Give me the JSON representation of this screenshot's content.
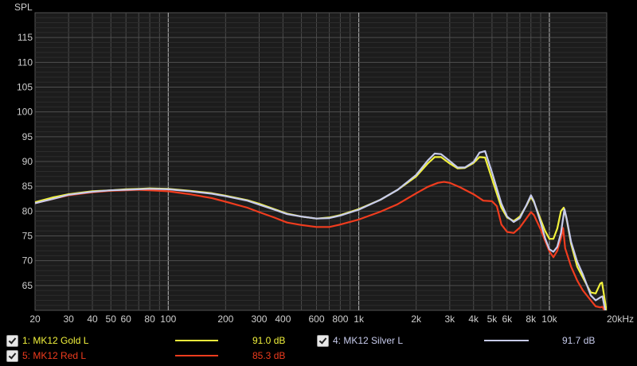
{
  "chart_data": {
    "type": "line",
    "ylabel": "SPL",
    "xunit_label": "20kHz",
    "x_scale": "log",
    "xlim": [
      20,
      20000
    ],
    "ylim": [
      60,
      120
    ],
    "grid": true,
    "y_ticks": [
      65,
      70,
      75,
      80,
      85,
      90,
      95,
      100,
      105,
      110,
      115
    ],
    "x_ticks": [
      {
        "v": 20,
        "label": "20"
      },
      {
        "v": 30,
        "label": "30"
      },
      {
        "v": 40,
        "label": "40"
      },
      {
        "v": 50,
        "label": "50"
      },
      {
        "v": 60,
        "label": "60"
      },
      {
        "v": 80,
        "label": "80"
      },
      {
        "v": 100,
        "label": "100"
      },
      {
        "v": 200,
        "label": "200"
      },
      {
        "v": 300,
        "label": "300"
      },
      {
        "v": 400,
        "label": "400"
      },
      {
        "v": 600,
        "label": "600"
      },
      {
        "v": 800,
        "label": "800"
      },
      {
        "v": 1000,
        "label": "1k"
      },
      {
        "v": 2000,
        "label": "2k"
      },
      {
        "v": 3000,
        "label": "3k"
      },
      {
        "v": 4000,
        "label": "4k"
      },
      {
        "v": 5000,
        "label": "5k"
      },
      {
        "v": 6000,
        "label": "6k"
      },
      {
        "v": 8000,
        "label": "8k"
      },
      {
        "v": 10000,
        "label": "10k"
      },
      {
        "v": 20000,
        "label": "20kHz"
      }
    ],
    "series": [
      {
        "name": "1: MK12 Gold L",
        "color": "#f2f23c",
        "value_label": "91.0 dB",
        "points": [
          [
            20,
            81.8
          ],
          [
            25,
            82.8
          ],
          [
            30,
            83.4
          ],
          [
            40,
            84.0
          ],
          [
            50,
            84.2
          ],
          [
            60,
            84.4
          ],
          [
            70,
            84.5
          ],
          [
            80,
            84.6
          ],
          [
            100,
            84.5
          ],
          [
            130,
            84.1
          ],
          [
            170,
            83.6
          ],
          [
            200,
            83.1
          ],
          [
            260,
            82.2
          ],
          [
            300,
            81.5
          ],
          [
            360,
            80.4
          ],
          [
            420,
            79.5
          ],
          [
            500,
            78.9
          ],
          [
            600,
            78.5
          ],
          [
            700,
            78.7
          ],
          [
            800,
            79.2
          ],
          [
            1000,
            80.4
          ],
          [
            1300,
            82.3
          ],
          [
            1600,
            84.3
          ],
          [
            2000,
            87.0
          ],
          [
            2300,
            89.6
          ],
          [
            2500,
            90.9
          ],
          [
            2700,
            90.9
          ],
          [
            3000,
            89.6
          ],
          [
            3300,
            88.6
          ],
          [
            3600,
            88.7
          ],
          [
            4000,
            89.7
          ],
          [
            4300,
            90.9
          ],
          [
            4600,
            90.8
          ],
          [
            5000,
            86.5
          ],
          [
            5600,
            80.7
          ],
          [
            6000,
            78.7
          ],
          [
            6500,
            78.0
          ],
          [
            7000,
            78.9
          ],
          [
            7600,
            81.2
          ],
          [
            8000,
            82.9
          ],
          [
            8300,
            81.8
          ],
          [
            9000,
            78.3
          ],
          [
            9500,
            76.0
          ],
          [
            10000,
            74.4
          ],
          [
            10500,
            74.4
          ],
          [
            11000,
            76.5
          ],
          [
            11500,
            80.0
          ],
          [
            11900,
            80.7
          ],
          [
            12300,
            78.5
          ],
          [
            13000,
            73.4
          ],
          [
            14000,
            68.8
          ],
          [
            15000,
            66.6
          ],
          [
            16500,
            63.6
          ],
          [
            17500,
            63.4
          ],
          [
            18500,
            65.4
          ],
          [
            18900,
            65.6
          ],
          [
            19400,
            62.8
          ],
          [
            20000,
            59.5
          ]
        ]
      },
      {
        "name": "4: MK12 Silver L",
        "color": "#c7cbec",
        "value_label": "91.7 dB",
        "points": [
          [
            20,
            81.6
          ],
          [
            25,
            82.5
          ],
          [
            30,
            83.3
          ],
          [
            40,
            83.9
          ],
          [
            50,
            84.2
          ],
          [
            60,
            84.3
          ],
          [
            70,
            84.4
          ],
          [
            80,
            84.5
          ],
          [
            100,
            84.4
          ],
          [
            130,
            84.0
          ],
          [
            170,
            83.5
          ],
          [
            200,
            83.0
          ],
          [
            260,
            82.1
          ],
          [
            300,
            81.3
          ],
          [
            360,
            80.3
          ],
          [
            420,
            79.4
          ],
          [
            500,
            78.9
          ],
          [
            600,
            78.5
          ],
          [
            700,
            78.6
          ],
          [
            800,
            79.1
          ],
          [
            1000,
            80.3
          ],
          [
            1300,
            82.3
          ],
          [
            1600,
            84.3
          ],
          [
            2000,
            87.3
          ],
          [
            2300,
            90.2
          ],
          [
            2500,
            91.6
          ],
          [
            2700,
            91.5
          ],
          [
            3000,
            90.1
          ],
          [
            3300,
            88.8
          ],
          [
            3600,
            88.8
          ],
          [
            4000,
            89.9
          ],
          [
            4300,
            91.8
          ],
          [
            4600,
            92.1
          ],
          [
            5000,
            87.8
          ],
          [
            5600,
            81.5
          ],
          [
            6000,
            78.9
          ],
          [
            6500,
            77.8
          ],
          [
            7000,
            78.6
          ],
          [
            7600,
            81.3
          ],
          [
            8000,
            83.2
          ],
          [
            8300,
            82.0
          ],
          [
            9000,
            77.7
          ],
          [
            9500,
            74.5
          ],
          [
            10000,
            72.3
          ],
          [
            10500,
            71.8
          ],
          [
            11000,
            72.8
          ],
          [
            11500,
            75.6
          ],
          [
            12000,
            80.4
          ],
          [
            12300,
            78.6
          ],
          [
            13000,
            73.8
          ],
          [
            14000,
            69.8
          ],
          [
            15000,
            67.2
          ],
          [
            16500,
            63.0
          ],
          [
            17500,
            62.0
          ],
          [
            18500,
            62.6
          ],
          [
            19000,
            62.8
          ],
          [
            19500,
            60.5
          ],
          [
            20000,
            58.8
          ]
        ]
      },
      {
        "name": "5: MK12 Red L",
        "color": "#f03c1e",
        "value_label": "85.3 dB",
        "points": [
          [
            20,
            81.6
          ],
          [
            25,
            82.5
          ],
          [
            30,
            83.2
          ],
          [
            40,
            83.8
          ],
          [
            50,
            84.1
          ],
          [
            60,
            84.2
          ],
          [
            70,
            84.3
          ],
          [
            80,
            84.2
          ],
          [
            100,
            84.0
          ],
          [
            130,
            83.4
          ],
          [
            170,
            82.6
          ],
          [
            200,
            81.9
          ],
          [
            260,
            80.7
          ],
          [
            300,
            79.8
          ],
          [
            360,
            78.7
          ],
          [
            420,
            77.7
          ],
          [
            500,
            77.2
          ],
          [
            600,
            76.8
          ],
          [
            700,
            76.8
          ],
          [
            800,
            77.3
          ],
          [
            1000,
            78.3
          ],
          [
            1300,
            79.9
          ],
          [
            1600,
            81.4
          ],
          [
            2000,
            83.6
          ],
          [
            2300,
            84.9
          ],
          [
            2600,
            85.7
          ],
          [
            2800,
            85.9
          ],
          [
            3000,
            85.7
          ],
          [
            3400,
            84.8
          ],
          [
            4000,
            83.4
          ],
          [
            4500,
            82.1
          ],
          [
            5000,
            82.0
          ],
          [
            5300,
            81.0
          ],
          [
            5600,
            77.3
          ],
          [
            6000,
            75.8
          ],
          [
            6500,
            75.6
          ],
          [
            7000,
            76.7
          ],
          [
            7600,
            78.6
          ],
          [
            8000,
            79.8
          ],
          [
            8300,
            79.2
          ],
          [
            9000,
            76.3
          ],
          [
            9500,
            74.0
          ],
          [
            10000,
            71.9
          ],
          [
            10500,
            70.7
          ],
          [
            11000,
            72.0
          ],
          [
            11500,
            74.5
          ],
          [
            11800,
            76.6
          ],
          [
            12100,
            72.5
          ],
          [
            13000,
            68.8
          ],
          [
            14000,
            66.0
          ],
          [
            15000,
            64.0
          ],
          [
            16500,
            62.0
          ],
          [
            17500,
            60.8
          ],
          [
            18500,
            60.6
          ],
          [
            19000,
            60.7
          ],
          [
            19500,
            59.8
          ],
          [
            20000,
            59.0
          ]
        ]
      }
    ]
  },
  "legend": {
    "items": [
      {
        "name": "1: MK12 Gold L",
        "value": "91.0 dB",
        "color": "#f2f23c"
      },
      {
        "name": "5: MK12 Red L",
        "value": "85.3 dB",
        "color": "#f03c1e"
      },
      {
        "name": "4: MK12 Silver L",
        "value": "91.7 dB",
        "color": "#c7cbec"
      }
    ]
  }
}
